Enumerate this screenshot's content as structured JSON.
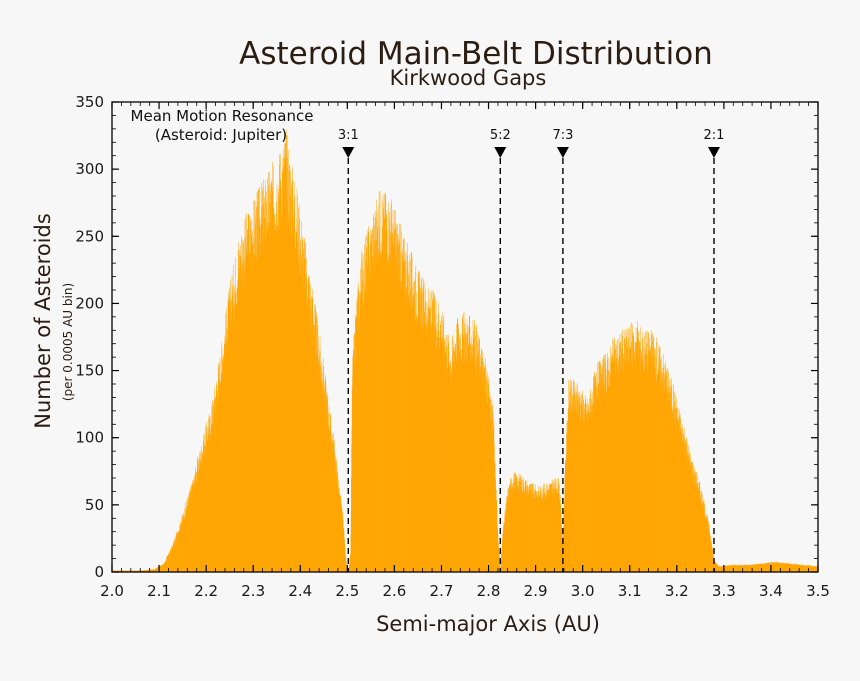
{
  "chart_data": {
    "type": "bar",
    "title": "Asteroid Main-Belt Distribution",
    "subtitle": "Kirkwood Gaps",
    "xlabel": "Semi-major Axis (AU)",
    "ylabel": "Number of Asteroids",
    "ylabel_unit": "(per 0.0005 AU bin)",
    "xlim": [
      2.0,
      3.5
    ],
    "ylim": [
      0,
      350
    ],
    "x_ticks": [
      "2.0",
      "2.1",
      "2.2",
      "2.3",
      "2.4",
      "2.5",
      "2.6",
      "2.7",
      "2.8",
      "2.9",
      "3.0",
      "3.1",
      "3.2",
      "3.3",
      "3.4",
      "3.5"
    ],
    "y_ticks": [
      "0",
      "50",
      "100",
      "150",
      "200",
      "250",
      "300",
      "350"
    ],
    "annotation": {
      "line1": "Mean Motion Resonance",
      "line2": "(Asteroid: Jupiter)"
    },
    "resonances": [
      {
        "label": "3:1",
        "x": 2.502
      },
      {
        "label": "5:2",
        "x": 2.825
      },
      {
        "label": "7:3",
        "x": 2.958
      },
      {
        "label": "2:1",
        "x": 3.279
      }
    ],
    "series": [
      {
        "color": "#ffa500",
        "x": [
          2.0,
          2.06,
          2.09,
          2.11,
          2.13,
          2.15,
          2.17,
          2.19,
          2.21,
          2.23,
          2.25,
          2.27,
          2.29,
          2.31,
          2.33,
          2.35,
          2.37,
          2.38,
          2.39,
          2.41,
          2.43,
          2.45,
          2.47,
          2.49,
          2.497,
          2.502,
          2.507,
          2.51,
          2.52,
          2.53,
          2.55,
          2.57,
          2.59,
          2.61,
          2.63,
          2.65,
          2.67,
          2.69,
          2.7,
          2.71,
          2.72,
          2.73,
          2.75,
          2.77,
          2.79,
          2.81,
          2.82,
          2.825,
          2.83,
          2.84,
          2.85,
          2.87,
          2.89,
          2.91,
          2.93,
          2.95,
          2.958,
          2.962,
          2.97,
          2.99,
          3.01,
          3.03,
          3.05,
          3.07,
          3.09,
          3.11,
          3.13,
          3.15,
          3.17,
          3.19,
          3.21,
          3.23,
          3.25,
          3.27,
          3.279,
          3.29,
          3.32,
          3.35,
          3.38,
          3.41,
          3.44,
          3.47,
          3.5
        ],
        "values": [
          1,
          1,
          2,
          6,
          20,
          40,
          62,
          88,
          112,
          150,
          195,
          230,
          245,
          258,
          270,
          280,
          300,
          280,
          265,
          225,
          185,
          140,
          95,
          40,
          8,
          0,
          15,
          140,
          190,
          218,
          240,
          260,
          256,
          236,
          220,
          205,
          192,
          188,
          180,
          168,
          155,
          172,
          175,
          170,
          150,
          112,
          25,
          0,
          28,
          56,
          68,
          66,
          60,
          58,
          62,
          64,
          20,
          70,
          130,
          128,
          118,
          140,
          148,
          160,
          165,
          170,
          165,
          162,
          150,
          130,
          105,
          80,
          60,
          30,
          8,
          4,
          5,
          5,
          6,
          7,
          6,
          5,
          4
        ]
      }
    ]
  }
}
